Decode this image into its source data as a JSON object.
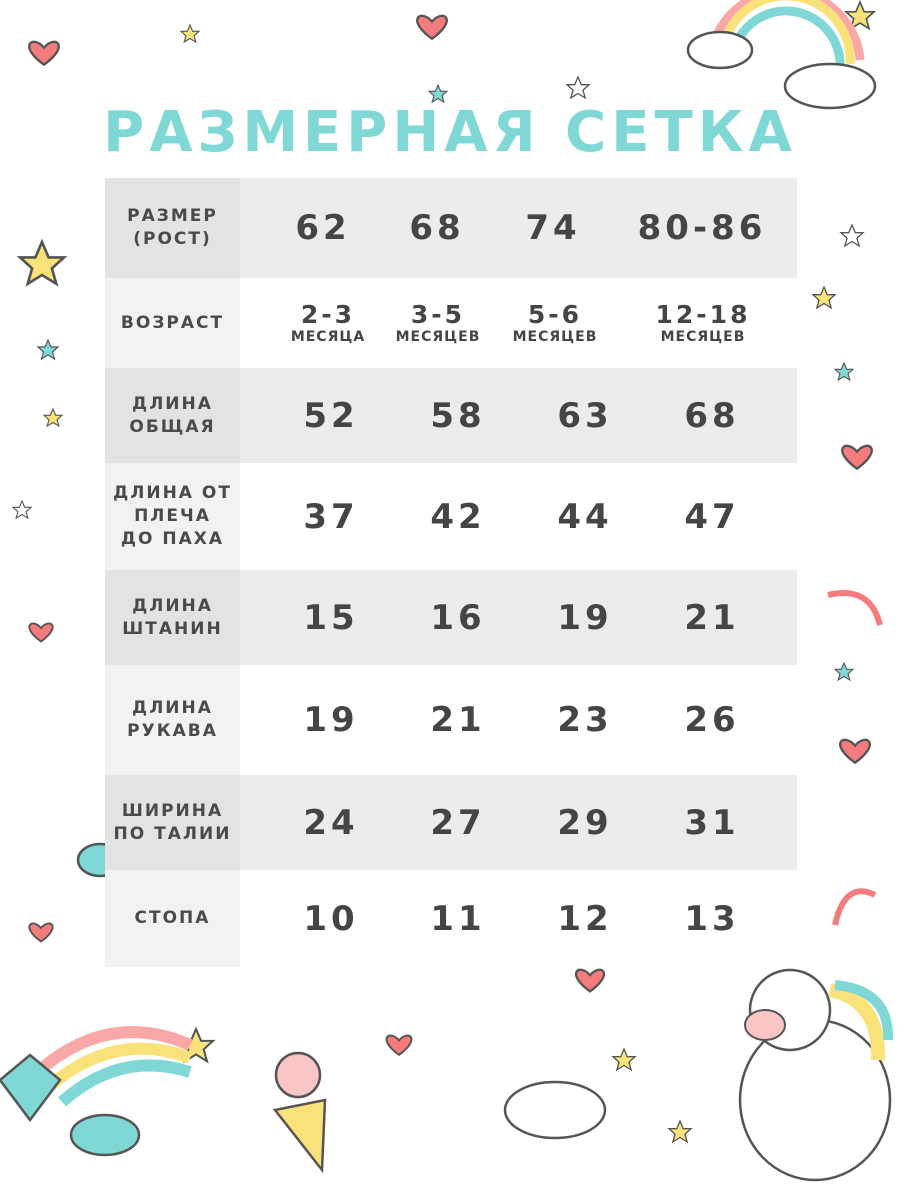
{
  "title": "РАЗМЕРНАЯ СЕТКА",
  "table": {
    "header": {
      "label": "РАЗМЕР\n(РОСТ)",
      "values": [
        "62",
        "68",
        "74",
        "80-86"
      ]
    },
    "age": {
      "label": "ВОЗРАСТ",
      "values": [
        {
          "num": "2-3",
          "unit": "МЕСЯЦА"
        },
        {
          "num": "3-5",
          "unit": "МЕСЯЦЕВ"
        },
        {
          "num": "5-6",
          "unit": "МЕСЯЦЕВ"
        },
        {
          "num": "12-18",
          "unit": "МЕСЯЦЕВ"
        }
      ]
    },
    "rows": [
      {
        "label": "ДЛИНА\nОБЩАЯ",
        "values": [
          "52",
          "58",
          "63",
          "68"
        ]
      },
      {
        "label": "ДЛИНА ОТ\nПЛЕЧА\nДО ПАХА",
        "values": [
          "37",
          "42",
          "44",
          "47"
        ]
      },
      {
        "label": "ДЛИНА\nШТАНИН",
        "values": [
          "15",
          "16",
          "19",
          "21"
        ]
      },
      {
        "label": "ДЛИНА\nРУКАВА",
        "values": [
          "19",
          "21",
          "23",
          "26"
        ]
      },
      {
        "label": "ШИРИНА\nПО ТАЛИИ",
        "values": [
          "24",
          "27",
          "29",
          "31"
        ]
      },
      {
        "label": "СТОПА",
        "values": [
          "10",
          "11",
          "12",
          "13"
        ]
      }
    ]
  },
  "colors": {
    "title": "#7fd8d6",
    "heart": "#f47c7c",
    "star_yellow": "#f9e27a",
    "star_teal": "#7fd8d6"
  }
}
